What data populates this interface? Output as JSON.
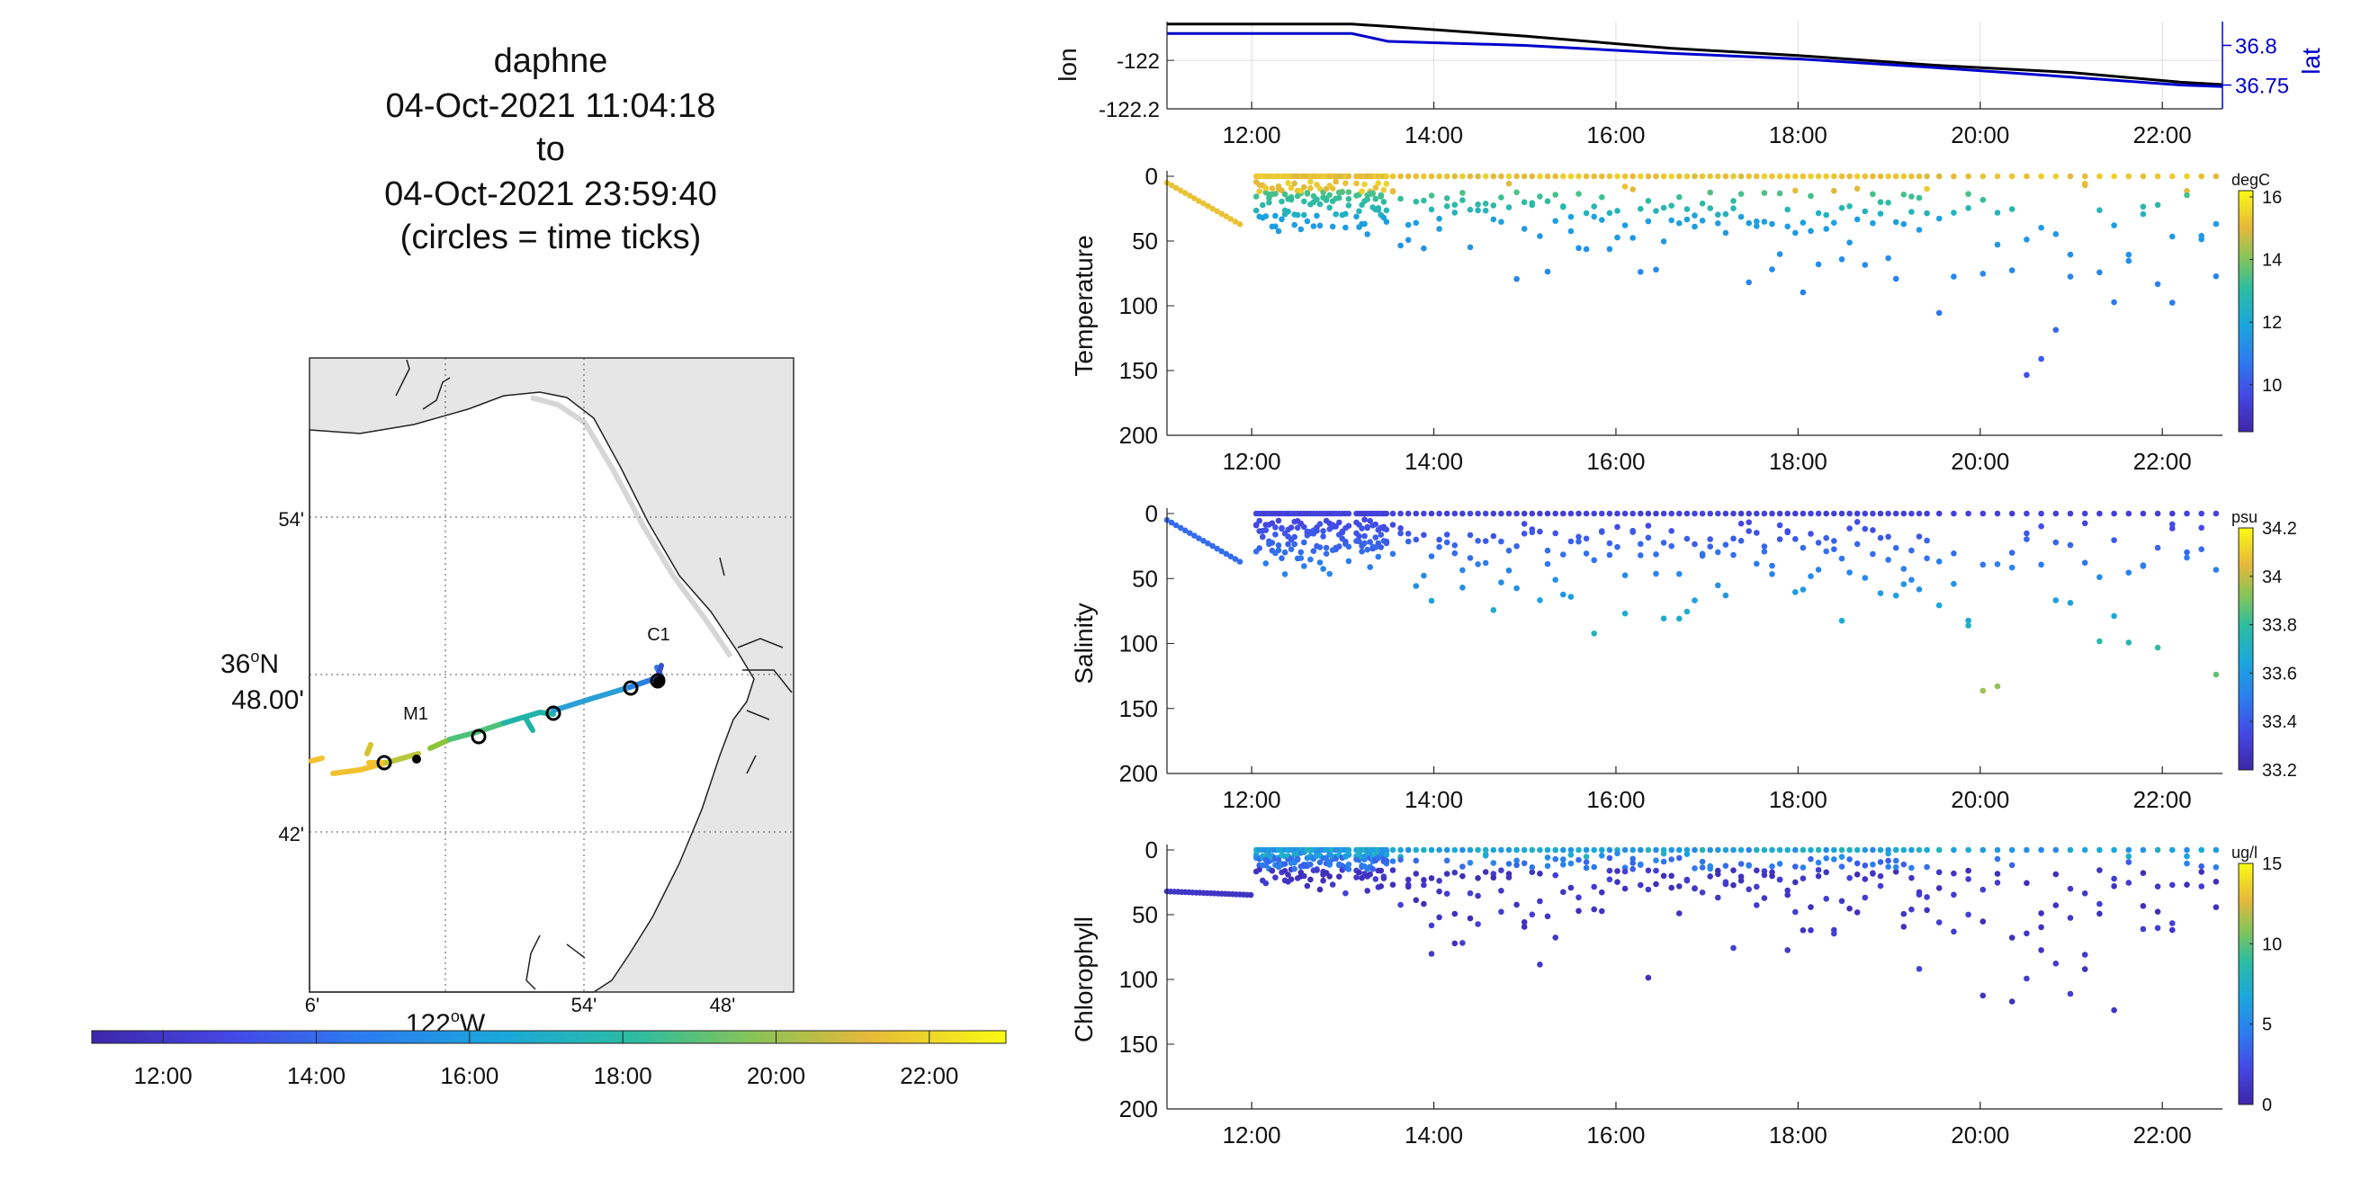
{
  "title": {
    "lines": [
      "daphne",
      "04-Oct-2021 11:04:18",
      "to",
      "04-Oct-2021 23:59:40",
      "(circles = time ticks)"
    ]
  },
  "map": {
    "lat_ticks": [
      "54'",
      "42'"
    ],
    "lat_major": [
      "36",
      "48.00'"
    ],
    "lon_ticks": [
      "6'",
      "54'",
      "48'"
    ],
    "lon_major": "122",
    "lon_major_suffix": "W",
    "lat_major_suffix": "N",
    "stations": [
      "M1",
      "C1"
    ],
    "land_color": "#e6e6e6",
    "track_colors": [
      "#3b2bb5",
      "#2a7fe0",
      "#21b3a5",
      "#8cc43c",
      "#f2c12e",
      "#f7e51f"
    ]
  },
  "time_colorbar": {
    "ticks": [
      "12:00",
      "14:00",
      "16:00",
      "18:00",
      "20:00",
      "22:00"
    ]
  },
  "chart_data": [
    {
      "type": "line",
      "title": "",
      "xlabel": "",
      "ylabel": "lon",
      "ylabel_right": "lat",
      "x_ticks": [
        "12:00",
        "14:00",
        "16:00",
        "18:00",
        "20:00",
        "22:00"
      ],
      "x_range_hours": [
        11.07,
        22.66
      ],
      "ylim": [
        -122.2,
        -121.84
      ],
      "ylim_right": [
        36.72,
        36.83
      ],
      "y_ticks": [
        "-122",
        "-122.2"
      ],
      "y_ticks_right": [
        "36.8",
        "36.75"
      ],
      "series": [
        {
          "name": "lon",
          "color": "#000000",
          "x": [
            11.07,
            13.1,
            13.5,
            15.0,
            16.6,
            18.0,
            19.5,
            21.0,
            22.2,
            22.66
          ],
          "values": [
            -121.85,
            -121.85,
            -121.86,
            -121.9,
            -121.95,
            -121.98,
            -122.02,
            -122.05,
            -122.09,
            -122.1
          ]
        },
        {
          "name": "lat",
          "color": "#0000cc",
          "x": [
            11.07,
            13.1,
            13.5,
            15.0,
            16.6,
            18.0,
            19.5,
            21.0,
            22.2,
            22.66
          ],
          "values": [
            36.815,
            36.815,
            36.805,
            36.8,
            36.79,
            36.783,
            36.772,
            36.76,
            36.75,
            36.748
          ]
        }
      ]
    },
    {
      "type": "scatter",
      "ylabel": "Temperature",
      "units": "degC",
      "ylim": [
        0,
        200
      ],
      "y_ticks": [
        "0",
        "50",
        "100",
        "150",
        "200"
      ],
      "x_ticks": [
        "12:00",
        "14:00",
        "16:00",
        "18:00",
        "20:00",
        "22:00"
      ],
      "colorbar_ticks": [
        "16",
        "14",
        "12",
        "10"
      ],
      "colorbar_range": [
        8.5,
        16.2
      ]
    },
    {
      "type": "scatter",
      "ylabel": "Salinity",
      "units": "psu",
      "ylim": [
        0,
        200
      ],
      "y_ticks": [
        "0",
        "50",
        "100",
        "150",
        "200"
      ],
      "x_ticks": [
        "12:00",
        "14:00",
        "16:00",
        "18:00",
        "20:00",
        "22:00"
      ],
      "colorbar_ticks": [
        "34.2",
        "34",
        "33.8",
        "33.6",
        "33.4",
        "33.2"
      ],
      "colorbar_range": [
        33.2,
        34.2
      ]
    },
    {
      "type": "scatter",
      "ylabel": "Chlorophyll",
      "units": "ug/l",
      "ylim": [
        0,
        200
      ],
      "y_ticks": [
        "0",
        "50",
        "100",
        "150",
        "200"
      ],
      "x_ticks": [
        "12:00",
        "14:00",
        "16:00",
        "18:00",
        "20:00",
        "22:00"
      ],
      "colorbar_ticks": [
        "15",
        "10",
        "5",
        "0"
      ],
      "colorbar_range": [
        0,
        15
      ]
    }
  ]
}
